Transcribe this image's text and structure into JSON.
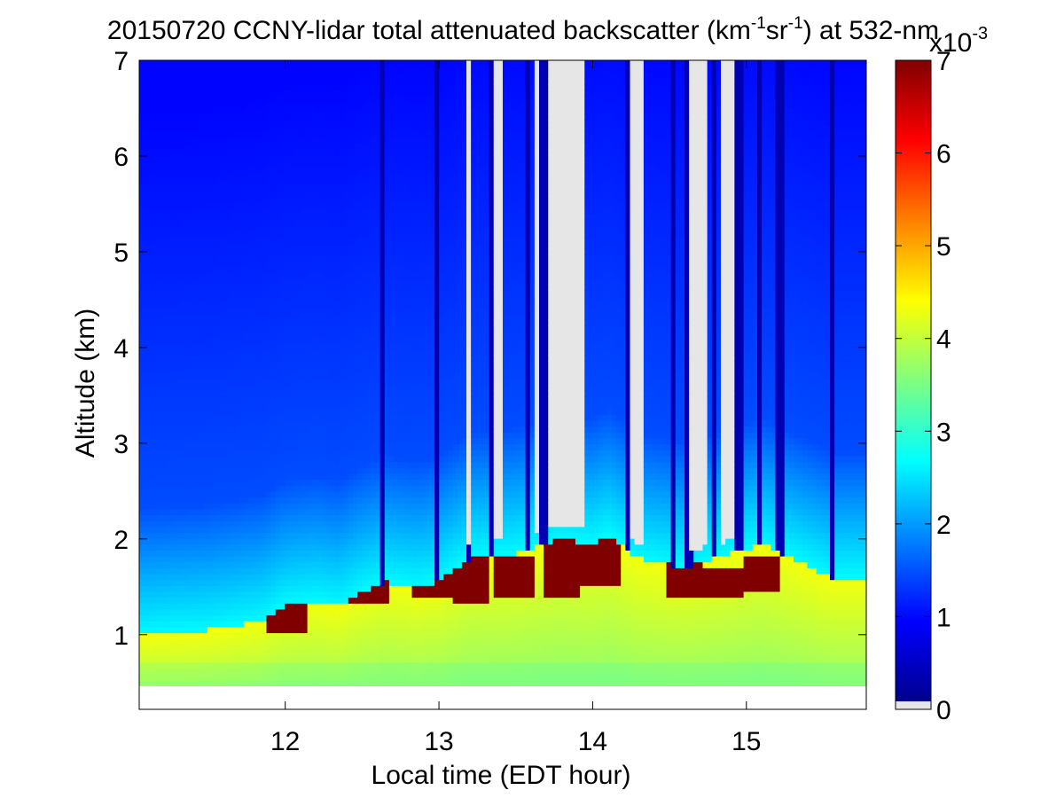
{
  "chart_data": {
    "type": "heatmap",
    "title": {
      "main": "20150720 CCNY-lidar total attenuated backscatter (km",
      "exp1": "-1",
      "mid": "sr",
      "exp2": "-1",
      "tail": ") at 532-nm"
    },
    "xlabel": "Local time (EDT hour)",
    "ylabel": "Altitude (km)",
    "xlim": [
      11.05,
      15.78
    ],
    "ylim": [
      0.22,
      7.0
    ],
    "xticks": [
      12,
      13,
      14,
      15
    ],
    "yticks": [
      1,
      2,
      3,
      4,
      5,
      6,
      7
    ],
    "colorbar": {
      "range": [
        0,
        7
      ],
      "ticks": [
        0,
        1,
        2,
        3,
        4,
        5,
        6,
        7
      ],
      "multiplier_base": "x10",
      "multiplier_exp": "-3",
      "no_data_color": "#e6e6e6"
    },
    "data_bottom_altitude_km": 0.45,
    "aerosol_layer_top_km": [
      [
        11.05,
        1.0
      ],
      [
        11.5,
        1.05
      ],
      [
        11.85,
        1.15
      ],
      [
        12.0,
        1.3
      ],
      [
        12.2,
        1.35
      ],
      [
        12.35,
        1.3
      ],
      [
        12.5,
        1.45
      ],
      [
        12.65,
        1.55
      ],
      [
        12.85,
        1.5
      ],
      [
        13.0,
        1.55
      ],
      [
        13.2,
        1.8
      ],
      [
        13.5,
        1.85
      ],
      [
        13.8,
        2.0
      ],
      [
        14.0,
        1.95
      ],
      [
        14.1,
        2.05
      ],
      [
        14.3,
        1.8
      ],
      [
        14.6,
        1.7
      ],
      [
        14.9,
        1.85
      ],
      [
        15.1,
        1.95
      ],
      [
        15.3,
        1.8
      ],
      [
        15.55,
        1.6
      ],
      [
        15.78,
        1.6
      ]
    ],
    "high_backscatter_band_km": [
      [
        12.0,
        1.05,
        1.35
      ],
      [
        12.55,
        1.3,
        1.6
      ],
      [
        12.95,
        1.4,
        1.65
      ],
      [
        13.2,
        1.35,
        1.85
      ],
      [
        13.5,
        1.4,
        1.85
      ],
      [
        13.8,
        1.4,
        2.0
      ],
      [
        14.05,
        1.5,
        2.0
      ],
      [
        14.6,
        1.4,
        1.75
      ],
      [
        14.85,
        1.4,
        1.7
      ],
      [
        15.1,
        1.45,
        1.85
      ]
    ],
    "dark_profiles_hours": [
      12.62,
      12.98,
      13.2,
      13.35,
      13.58,
      13.68,
      14.22,
      14.52,
      14.63,
      14.78,
      14.95,
      15.08,
      15.22,
      15.55
    ],
    "no_data_bands_above_2km_hours": [
      [
        13.19,
        13.21
      ],
      [
        13.37,
        13.41
      ],
      [
        13.62,
        13.64
      ],
      [
        13.73,
        13.88
      ],
      [
        13.91,
        13.95
      ],
      [
        14.26,
        14.31
      ],
      [
        14.65,
        14.73
      ],
      [
        14.84,
        14.92
      ]
    ]
  }
}
